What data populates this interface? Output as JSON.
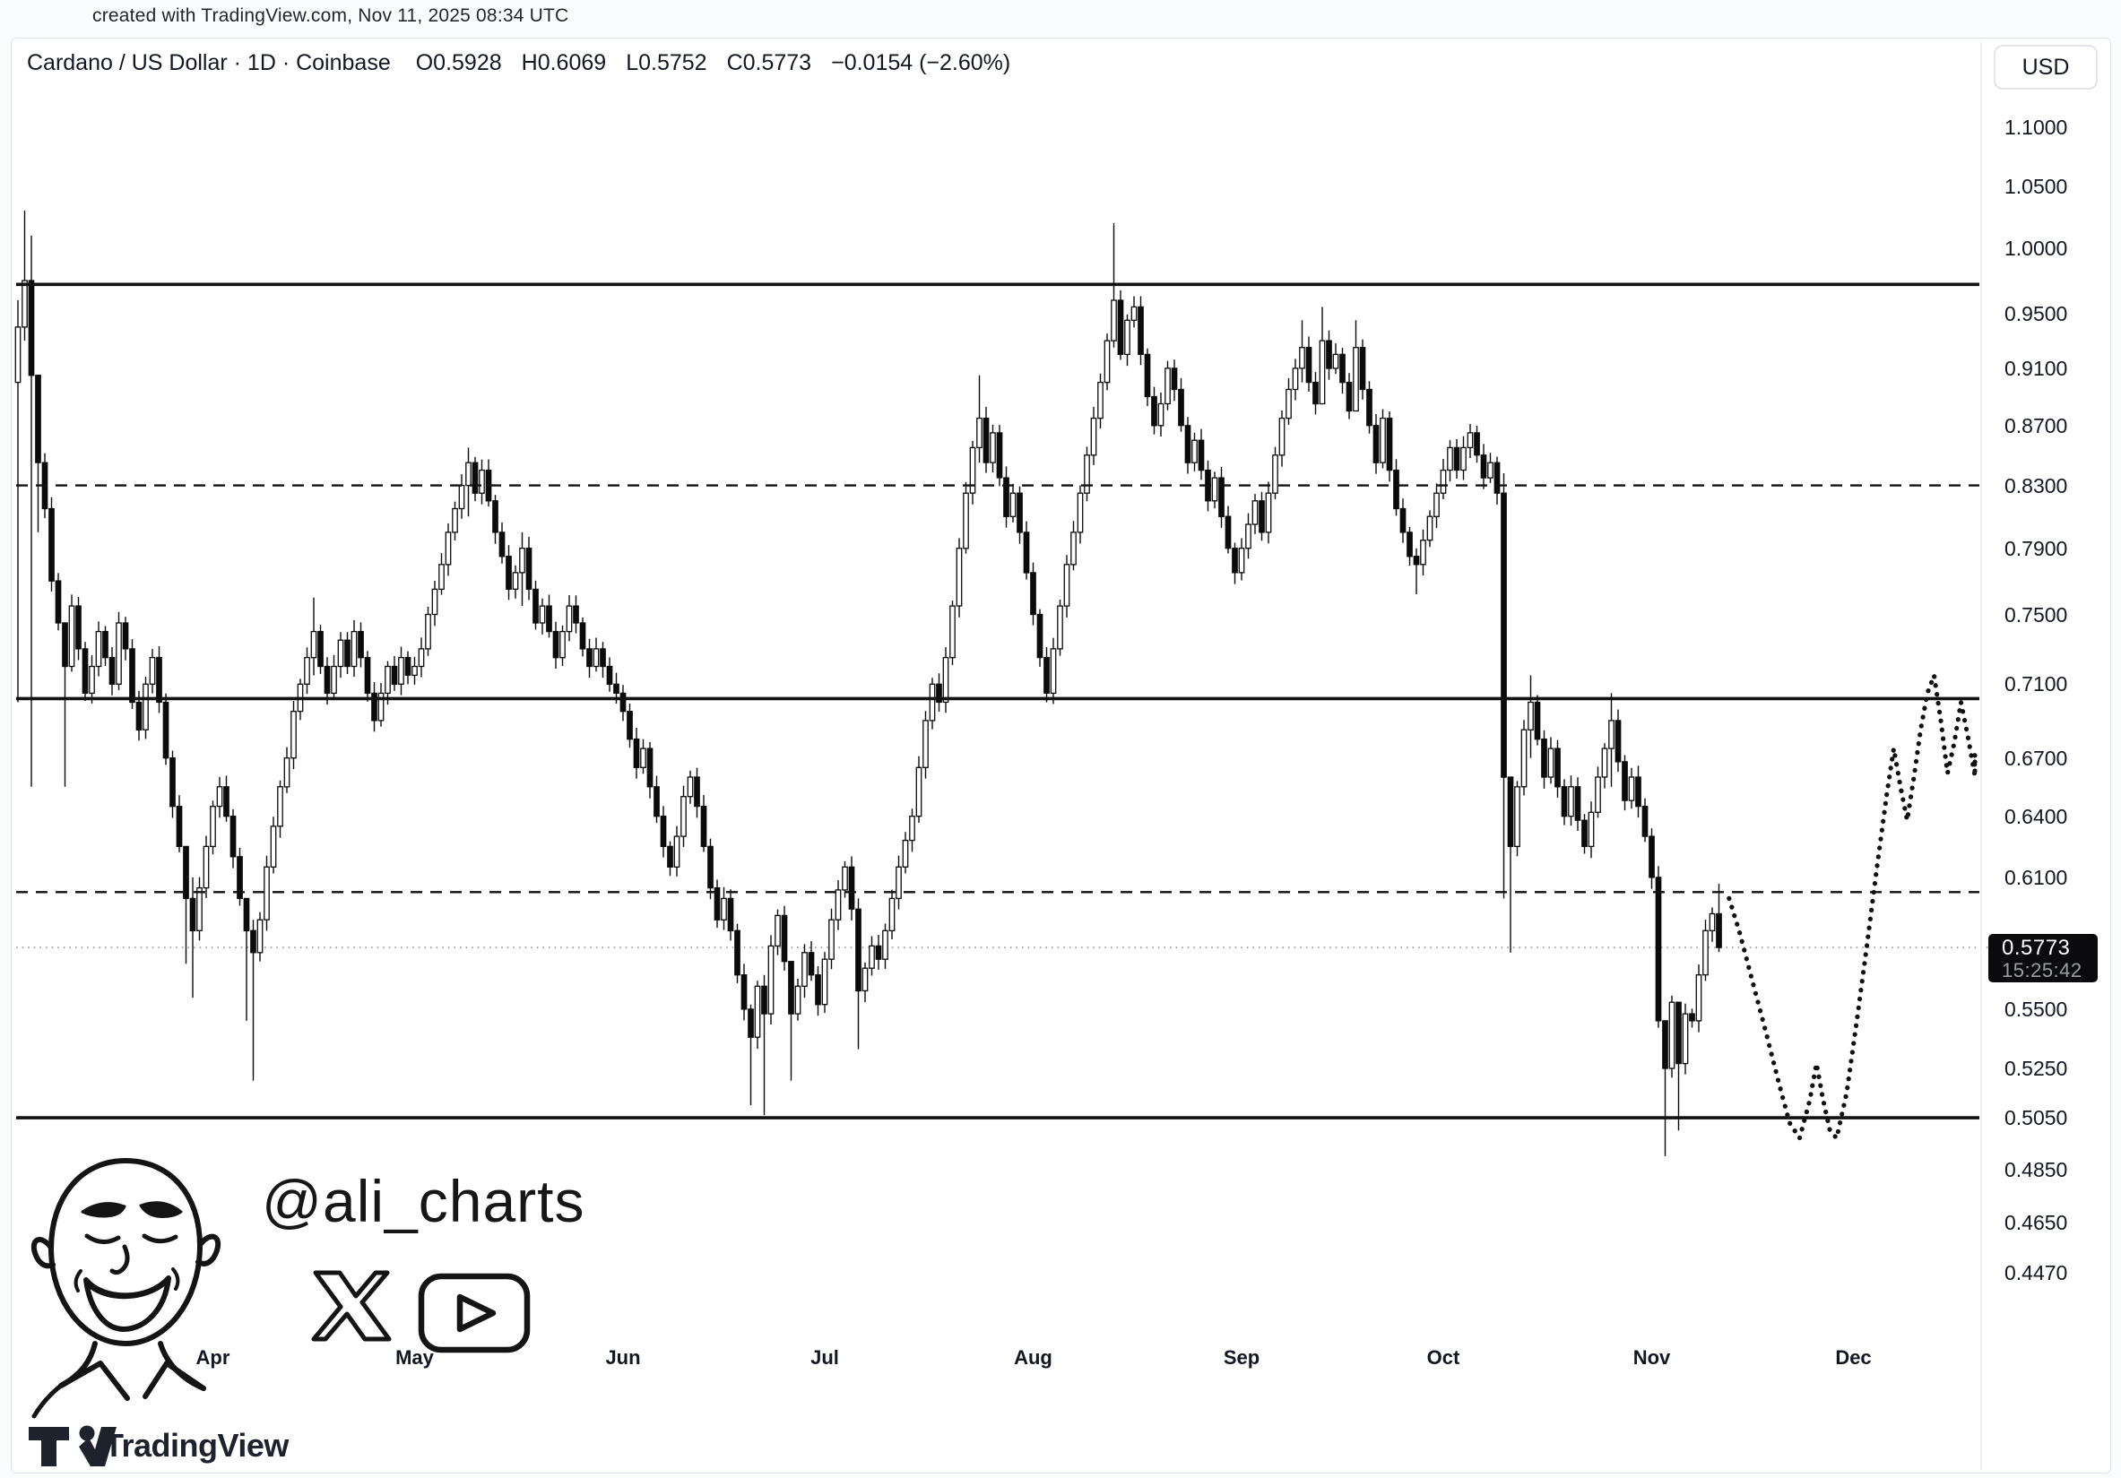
{
  "top_bar": {
    "text": "created with TradingView.com, Nov 11, 2025 08:34 UTC"
  },
  "legend": {
    "title": "Cardano / US Dollar · 1D · Coinbase",
    "values": [
      "O0.5928",
      "H0.6069",
      "L0.5752",
      "C0.5773",
      "−0.0154 (−2.60%)"
    ]
  },
  "toolbar": {
    "currency_label": "USD"
  },
  "price_scale": {
    "badge": {
      "price": "0.5773",
      "countdown": "15:25:42"
    }
  },
  "branding": {
    "handle": "@ali_charts",
    "icons": [
      "ali-avatar",
      "x-icon",
      "youtube-icon"
    ]
  },
  "footer": {
    "logo_text": "TradingView"
  },
  "chart_data": {
    "type": "candlestick",
    "title": "Cardano / US Dollar · 1D · Coinbase",
    "pair": "ADA/USD",
    "interval": "1D",
    "exchange": "Coinbase",
    "last_bar": {
      "open": 0.5928,
      "high": 0.6069,
      "low": 0.5752,
      "close": 0.5773,
      "change": -0.0154,
      "change_pct": -2.6
    },
    "scale": "log",
    "grid": false,
    "bars": 254,
    "first_open": 0.9,
    "y_axis": {
      "ticks": [
        {
          "label": "1.1000",
          "value": 1.1
        },
        {
          "label": "1.0500",
          "value": 1.05
        },
        {
          "label": "1.0000",
          "value": 1.0
        },
        {
          "label": "0.9500",
          "value": 0.95
        },
        {
          "label": "0.9100",
          "value": 0.91
        },
        {
          "label": "0.8700",
          "value": 0.87
        },
        {
          "label": "0.8300",
          "value": 0.83
        },
        {
          "label": "0.7900",
          "value": 0.79
        },
        {
          "label": "0.7500",
          "value": 0.75
        },
        {
          "label": "0.7100",
          "value": 0.71
        },
        {
          "label": "0.6700",
          "value": 0.67
        },
        {
          "label": "0.6400",
          "value": 0.64
        },
        {
          "label": "0.6100",
          "value": 0.61
        },
        {
          "label": "0.5500",
          "value": 0.55
        },
        {
          "label": "0.5250",
          "value": 0.525
        },
        {
          "label": "0.5050",
          "value": 0.505
        },
        {
          "label": "0.4850",
          "value": 0.485
        },
        {
          "label": "0.4650",
          "value": 0.465
        },
        {
          "label": "0.4470",
          "value": 0.447
        }
      ]
    },
    "x_axis": {
      "start_date": "2025-03-03",
      "months": [
        {
          "label": "Apr",
          "day": 29
        },
        {
          "label": "May",
          "day": 59
        },
        {
          "label": "Jun",
          "day": 90
        },
        {
          "label": "Jul",
          "day": 120
        },
        {
          "label": "Aug",
          "day": 151
        },
        {
          "label": "Sep",
          "day": 182
        },
        {
          "label": "Oct",
          "day": 212
        },
        {
          "label": "Nov",
          "day": 243
        },
        {
          "label": "Dec",
          "day": 273
        }
      ]
    },
    "levels": [
      {
        "price": 0.972,
        "style": "solid"
      },
      {
        "price": 0.83,
        "style": "dashed"
      },
      {
        "price": 0.702,
        "style": "solid"
      },
      {
        "price": 0.603,
        "style": "dashed"
      },
      {
        "price": 0.505,
        "style": "solid"
      }
    ],
    "last_price_line": {
      "price": 0.5773,
      "style": "dotted"
    },
    "close_anchors": [
      [
        0,
        0.94
      ],
      [
        1,
        0.975
      ],
      [
        2,
        0.905
      ],
      [
        3,
        0.845
      ],
      [
        4,
        0.815
      ],
      [
        5,
        0.77
      ],
      [
        6,
        0.745
      ],
      [
        7,
        0.72
      ],
      [
        8,
        0.755
      ],
      [
        9,
        0.73
      ],
      [
        10,
        0.705
      ],
      [
        11,
        0.72
      ],
      [
        12,
        0.74
      ],
      [
        13,
        0.725
      ],
      [
        14,
        0.71
      ],
      [
        15,
        0.745
      ],
      [
        16,
        0.73
      ],
      [
        17,
        0.7
      ],
      [
        18,
        0.685
      ],
      [
        19,
        0.71
      ],
      [
        20,
        0.725
      ],
      [
        21,
        0.7
      ],
      [
        22,
        0.67
      ],
      [
        23,
        0.645
      ],
      [
        24,
        0.625
      ],
      [
        25,
        0.6
      ],
      [
        26,
        0.585
      ],
      [
        27,
        0.605
      ],
      [
        28,
        0.625
      ],
      [
        29,
        0.645
      ],
      [
        30,
        0.655
      ],
      [
        31,
        0.64
      ],
      [
        32,
        0.62
      ],
      [
        33,
        0.6
      ],
      [
        34,
        0.585
      ],
      [
        35,
        0.575
      ],
      [
        36,
        0.59
      ],
      [
        37,
        0.615
      ],
      [
        38,
        0.635
      ],
      [
        39,
        0.655
      ],
      [
        40,
        0.67
      ],
      [
        41,
        0.695
      ],
      [
        42,
        0.71
      ],
      [
        43,
        0.725
      ],
      [
        44,
        0.74
      ],
      [
        45,
        0.72
      ],
      [
        46,
        0.705
      ],
      [
        47,
        0.72
      ],
      [
        48,
        0.735
      ],
      [
        49,
        0.72
      ],
      [
        50,
        0.74
      ],
      [
        51,
        0.725
      ],
      [
        52,
        0.705
      ],
      [
        53,
        0.69
      ],
      [
        54,
        0.705
      ],
      [
        55,
        0.72
      ],
      [
        56,
        0.71
      ],
      [
        57,
        0.725
      ],
      [
        58,
        0.715
      ],
      [
        59,
        0.72
      ],
      [
        60,
        0.73
      ],
      [
        61,
        0.75
      ],
      [
        62,
        0.765
      ],
      [
        63,
        0.78
      ],
      [
        64,
        0.8
      ],
      [
        65,
        0.815
      ],
      [
        66,
        0.83
      ],
      [
        67,
        0.845
      ],
      [
        68,
        0.825
      ],
      [
        69,
        0.84
      ],
      [
        70,
        0.82
      ],
      [
        71,
        0.8
      ],
      [
        72,
        0.785
      ],
      [
        73,
        0.765
      ],
      [
        74,
        0.775
      ],
      [
        75,
        0.79
      ],
      [
        76,
        0.765
      ],
      [
        77,
        0.745
      ],
      [
        78,
        0.755
      ],
      [
        79,
        0.74
      ],
      [
        80,
        0.725
      ],
      [
        81,
        0.74
      ],
      [
        82,
        0.755
      ],
      [
        83,
        0.745
      ],
      [
        84,
        0.73
      ],
      [
        85,
        0.72
      ],
      [
        86,
        0.73
      ],
      [
        87,
        0.72
      ],
      [
        88,
        0.71
      ],
      [
        89,
        0.705
      ],
      [
        90,
        0.695
      ],
      [
        91,
        0.68
      ],
      [
        92,
        0.665
      ],
      [
        93,
        0.675
      ],
      [
        94,
        0.655
      ],
      [
        95,
        0.64
      ],
      [
        96,
        0.625
      ],
      [
        97,
        0.615
      ],
      [
        98,
        0.63
      ],
      [
        99,
        0.65
      ],
      [
        100,
        0.66
      ],
      [
        101,
        0.645
      ],
      [
        102,
        0.625
      ],
      [
        103,
        0.605
      ],
      [
        104,
        0.59
      ],
      [
        105,
        0.6
      ],
      [
        106,
        0.585
      ],
      [
        107,
        0.565
      ],
      [
        108,
        0.55
      ],
      [
        109,
        0.538
      ],
      [
        110,
        0.56
      ],
      [
        111,
        0.548
      ],
      [
        112,
        0.578
      ],
      [
        113,
        0.592
      ],
      [
        114,
        0.571
      ],
      [
        115,
        0.548
      ],
      [
        116,
        0.56
      ],
      [
        117,
        0.575
      ],
      [
        118,
        0.565
      ],
      [
        119,
        0.552
      ],
      [
        120,
        0.572
      ],
      [
        121,
        0.59
      ],
      [
        122,
        0.604
      ],
      [
        123,
        0.615
      ],
      [
        124,
        0.595
      ],
      [
        125,
        0.558
      ],
      [
        126,
        0.568
      ],
      [
        127,
        0.578
      ],
      [
        128,
        0.572
      ],
      [
        129,
        0.585
      ],
      [
        130,
        0.6
      ],
      [
        131,
        0.615
      ],
      [
        132,
        0.628
      ],
      [
        133,
        0.64
      ],
      [
        134,
        0.665
      ],
      [
        135,
        0.69
      ],
      [
        136,
        0.71
      ],
      [
        137,
        0.7
      ],
      [
        138,
        0.725
      ],
      [
        139,
        0.755
      ],
      [
        140,
        0.79
      ],
      [
        141,
        0.825
      ],
      [
        142,
        0.855
      ],
      [
        143,
        0.875
      ],
      [
        144,
        0.845
      ],
      [
        145,
        0.865
      ],
      [
        146,
        0.835
      ],
      [
        147,
        0.81
      ],
      [
        148,
        0.825
      ],
      [
        149,
        0.8
      ],
      [
        150,
        0.775
      ],
      [
        151,
        0.75
      ],
      [
        152,
        0.725
      ],
      [
        153,
        0.705
      ],
      [
        154,
        0.73
      ],
      [
        155,
        0.755
      ],
      [
        156,
        0.78
      ],
      [
        157,
        0.8
      ],
      [
        158,
        0.825
      ],
      [
        159,
        0.85
      ],
      [
        160,
        0.875
      ],
      [
        161,
        0.9
      ],
      [
        162,
        0.93
      ],
      [
        163,
        0.96
      ],
      [
        164,
        0.92
      ],
      [
        165,
        0.945
      ],
      [
        166,
        0.955
      ],
      [
        167,
        0.92
      ],
      [
        168,
        0.89
      ],
      [
        169,
        0.87
      ],
      [
        170,
        0.885
      ],
      [
        171,
        0.91
      ],
      [
        172,
        0.895
      ],
      [
        173,
        0.87
      ],
      [
        174,
        0.845
      ],
      [
        175,
        0.86
      ],
      [
        176,
        0.84
      ],
      [
        177,
        0.82
      ],
      [
        178,
        0.835
      ],
      [
        179,
        0.81
      ],
      [
        180,
        0.79
      ],
      [
        181,
        0.775
      ],
      [
        182,
        0.79
      ],
      [
        183,
        0.805
      ],
      [
        184,
        0.82
      ],
      [
        185,
        0.8
      ],
      [
        186,
        0.825
      ],
      [
        187,
        0.85
      ],
      [
        188,
        0.875
      ],
      [
        189,
        0.895
      ],
      [
        190,
        0.91
      ],
      [
        191,
        0.925
      ],
      [
        192,
        0.9
      ],
      [
        193,
        0.885
      ],
      [
        194,
        0.93
      ],
      [
        195,
        0.91
      ],
      [
        196,
        0.92
      ],
      [
        197,
        0.9
      ],
      [
        198,
        0.88
      ],
      [
        199,
        0.925
      ],
      [
        200,
        0.895
      ],
      [
        201,
        0.87
      ],
      [
        202,
        0.845
      ],
      [
        203,
        0.875
      ],
      [
        204,
        0.84
      ],
      [
        205,
        0.815
      ],
      [
        206,
        0.8
      ],
      [
        207,
        0.785
      ],
      [
        208,
        0.78
      ],
      [
        209,
        0.795
      ],
      [
        210,
        0.81
      ],
      [
        211,
        0.825
      ],
      [
        212,
        0.84
      ],
      [
        213,
        0.855
      ],
      [
        214,
        0.84
      ],
      [
        215,
        0.855
      ],
      [
        216,
        0.865
      ],
      [
        217,
        0.85
      ],
      [
        218,
        0.835
      ],
      [
        219,
        0.845
      ],
      [
        220,
        0.825
      ],
      [
        221,
        0.66
      ],
      [
        222,
        0.625
      ],
      [
        223,
        0.655
      ],
      [
        224,
        0.685
      ],
      [
        225,
        0.7
      ],
      [
        226,
        0.68
      ],
      [
        227,
        0.66
      ],
      [
        228,
        0.675
      ],
      [
        229,
        0.655
      ],
      [
        230,
        0.64
      ],
      [
        231,
        0.655
      ],
      [
        232,
        0.638
      ],
      [
        233,
        0.625
      ],
      [
        234,
        0.642
      ],
      [
        235,
        0.66
      ],
      [
        236,
        0.675
      ],
      [
        237,
        0.69
      ],
      [
        238,
        0.668
      ],
      [
        239,
        0.648
      ],
      [
        240,
        0.66
      ],
      [
        241,
        0.645
      ],
      [
        242,
        0.63
      ],
      [
        243,
        0.61
      ],
      [
        244,
        0.545
      ],
      [
        245,
        0.525
      ],
      [
        246,
        0.553
      ],
      [
        247,
        0.527
      ],
      [
        248,
        0.548
      ],
      [
        249,
        0.545
      ],
      [
        250,
        0.565
      ],
      [
        251,
        0.585
      ],
      [
        252,
        0.5928
      ],
      [
        253,
        0.5773
      ]
    ],
    "wick_overrides": {
      "0": [
        0.96,
        0.7
      ],
      "1": [
        1.03,
        0.93
      ],
      "2": [
        1.01,
        0.655
      ],
      "3": [
        0.875,
        0.8
      ],
      "7": [
        0.74,
        0.655
      ],
      "25": [
        0.625,
        0.57
      ],
      "26": [
        0.61,
        0.555
      ],
      "34": [
        0.6,
        0.545
      ],
      "35": [
        0.59,
        0.52
      ],
      "44": [
        0.76,
        0.715
      ],
      "67": [
        0.855,
        0.81
      ],
      "75": [
        0.8,
        0.755
      ],
      "109": [
        0.552,
        0.51
      ],
      "111": [
        0.565,
        0.506
      ],
      "115": [
        0.56,
        0.52
      ],
      "125": [
        0.6,
        0.533
      ],
      "143": [
        0.905,
        0.845
      ],
      "163": [
        1.02,
        0.925
      ],
      "191": [
        0.945,
        0.9
      ],
      "194": [
        0.955,
        0.905
      ],
      "199": [
        0.945,
        0.89
      ],
      "208": [
        0.79,
        0.762
      ],
      "221": [
        0.838,
        0.6
      ],
      "222": [
        0.655,
        0.575
      ],
      "225": [
        0.715,
        0.67
      ],
      "237": [
        0.705,
        0.655
      ],
      "245": [
        0.545,
        0.49
      ],
      "247": [
        0.55,
        0.5
      ],
      "253": [
        0.6069,
        0.5752
      ]
    },
    "projection": {
      "style": "dotted",
      "points": [
        [
          254.5,
          0.6
        ],
        [
          256,
          0.585
        ],
        [
          258,
          0.562
        ],
        [
          260,
          0.54
        ],
        [
          262,
          0.518
        ],
        [
          263.5,
          0.503
        ],
        [
          265,
          0.497
        ],
        [
          266.5,
          0.512
        ],
        [
          267.5,
          0.527
        ],
        [
          268.5,
          0.512
        ],
        [
          269.5,
          0.5
        ],
        [
          270.5,
          0.497
        ],
        [
          272,
          0.515
        ],
        [
          273.5,
          0.545
        ],
        [
          275,
          0.578
        ],
        [
          276.5,
          0.615
        ],
        [
          278,
          0.652
        ],
        [
          279,
          0.675
        ],
        [
          280,
          0.655
        ],
        [
          281,
          0.638
        ],
        [
          282,
          0.66
        ],
        [
          283,
          0.685
        ],
        [
          284,
          0.705
        ],
        [
          285,
          0.715
        ],
        [
          286,
          0.69
        ],
        [
          287,
          0.662
        ],
        [
          288,
          0.678
        ],
        [
          289,
          0.7
        ],
        [
          290,
          0.682
        ],
        [
          291,
          0.662
        ],
        [
          291.8,
          0.672
        ],
        [
          292,
          0.66
        ]
      ]
    }
  }
}
